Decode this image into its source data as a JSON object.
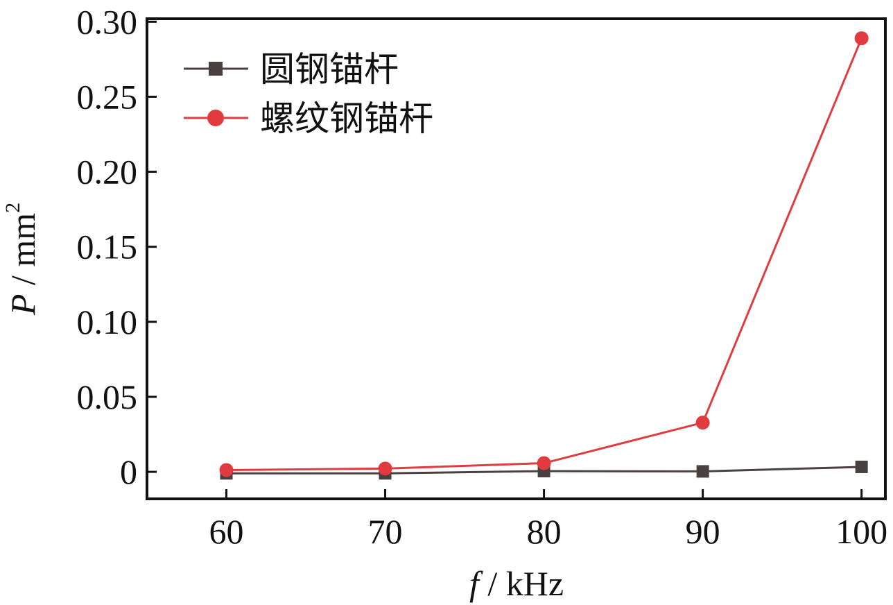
{
  "chart_data": {
    "type": "line",
    "x": [
      60,
      70,
      80,
      90,
      100
    ],
    "xticks": [
      "60",
      "70",
      "80",
      "90",
      "100"
    ],
    "yticks": [
      "0",
      "0.05",
      "0.10",
      "0.15",
      "0.20",
      "0.25",
      "0.30"
    ],
    "ytick_values": [
      0,
      0.05,
      0.1,
      0.15,
      0.2,
      0.25,
      0.3
    ],
    "xlim": [
      55,
      101.5
    ],
    "ylim": [
      -0.018,
      0.302
    ],
    "xlabel_var": "f",
    "xlabel_unit": " / kHz",
    "ylabel_var": "P",
    "ylabel_unit": " / mm",
    "ylabel_sup": "2",
    "legend_position": "top-left",
    "grid": false,
    "series": [
      {
        "name": "圆钢锚杆",
        "color": "#4a4040",
        "marker": "square",
        "values": [
          -0.001,
          -0.001,
          0.0005,
          0.0003,
          0.0033
        ]
      },
      {
        "name": "螺纹钢锚杆",
        "color": "#e23b3f",
        "marker": "circle",
        "values": [
          0.0012,
          0.0022,
          0.0058,
          0.0328,
          0.289
        ]
      }
    ]
  }
}
